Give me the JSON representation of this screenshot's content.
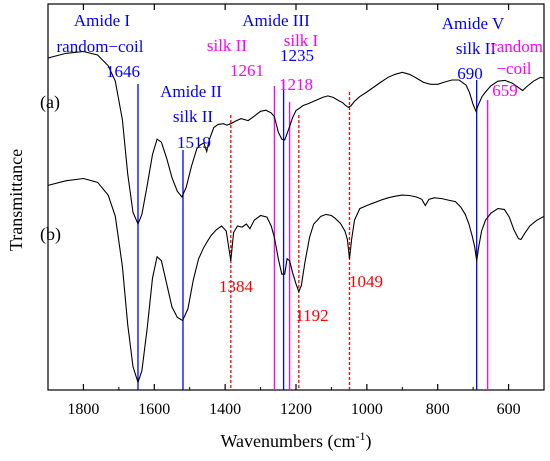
{
  "chart_data": {
    "type": "line",
    "title": "",
    "xlabel": "Wavenumbers (cm",
    "xlabel_sup": "-1",
    "xlabel_close": ")",
    "ylabel": "Transmittance",
    "xlim": [
      1900,
      500
    ],
    "x_reversed": true,
    "x_ticks": [
      1800,
      1600,
      1400,
      1200,
      1000,
      800,
      600
    ],
    "y_ticks_shown": false,
    "grid": false,
    "colors": {
      "trace": "#000000",
      "amide_blue": "#0000ff",
      "silk_magenta": "#ff00ff",
      "marker_red": "#ff0000"
    },
    "series": [
      {
        "label": "(a)",
        "points": [
          [
            1900,
            0.86
          ],
          [
            1850,
            0.872
          ],
          [
            1800,
            0.877
          ],
          [
            1760,
            0.868
          ],
          [
            1730,
            0.84
          ],
          [
            1710,
            0.8
          ],
          [
            1690,
            0.7
          ],
          [
            1675,
            0.56
          ],
          [
            1660,
            0.46
          ],
          [
            1646,
            0.43
          ],
          [
            1635,
            0.455
          ],
          [
            1620,
            0.53
          ],
          [
            1605,
            0.61
          ],
          [
            1592,
            0.65
          ],
          [
            1580,
            0.642
          ],
          [
            1565,
            0.6
          ],
          [
            1550,
            0.55
          ],
          [
            1535,
            0.515
          ],
          [
            1522,
            0.5
          ],
          [
            1510,
            0.525
          ],
          [
            1495,
            0.58
          ],
          [
            1480,
            0.625
          ],
          [
            1470,
            0.635
          ],
          [
            1460,
            0.64
          ],
          [
            1452,
            0.618
          ],
          [
            1445,
            0.648
          ],
          [
            1432,
            0.68
          ],
          [
            1420,
            0.688
          ],
          [
            1405,
            0.69
          ],
          [
            1395,
            0.686
          ],
          [
            1384,
            0.69
          ],
          [
            1370,
            0.697
          ],
          [
            1355,
            0.703
          ],
          [
            1335,
            0.698
          ],
          [
            1320,
            0.708
          ],
          [
            1300,
            0.722
          ],
          [
            1285,
            0.725
          ],
          [
            1270,
            0.718
          ],
          [
            1261,
            0.708
          ],
          [
            1250,
            0.668
          ],
          [
            1240,
            0.65
          ],
          [
            1232,
            0.648
          ],
          [
            1222,
            0.672
          ],
          [
            1210,
            0.705
          ],
          [
            1200,
            0.724
          ],
          [
            1190,
            0.73
          ],
          [
            1180,
            0.737
          ],
          [
            1165,
            0.742
          ],
          [
            1150,
            0.748
          ],
          [
            1140,
            0.752
          ],
          [
            1125,
            0.758
          ],
          [
            1110,
            0.762
          ],
          [
            1095,
            0.758
          ],
          [
            1080,
            0.75
          ],
          [
            1068,
            0.744
          ],
          [
            1060,
            0.737
          ],
          [
            1052,
            0.732
          ],
          [
            1045,
            0.736
          ],
          [
            1035,
            0.748
          ],
          [
            1020,
            0.76
          ],
          [
            1000,
            0.772
          ],
          [
            980,
            0.785
          ],
          [
            960,
            0.798
          ],
          [
            940,
            0.81
          ],
          [
            920,
            0.818
          ],
          [
            900,
            0.823
          ],
          [
            880,
            0.818
          ],
          [
            860,
            0.808
          ],
          [
            840,
            0.797
          ],
          [
            820,
            0.792
          ],
          [
            800,
            0.792
          ],
          [
            780,
            0.798
          ],
          [
            760,
            0.803
          ],
          [
            740,
            0.803
          ],
          [
            720,
            0.79
          ],
          [
            710,
            0.77
          ],
          [
            700,
            0.74
          ],
          [
            692,
            0.722
          ],
          [
            685,
            0.74
          ],
          [
            675,
            0.76
          ],
          [
            665,
            0.772
          ],
          [
            650,
            0.788
          ],
          [
            630,
            0.8
          ],
          [
            610,
            0.802
          ],
          [
            590,
            0.795
          ],
          [
            570,
            0.782
          ],
          [
            560,
            0.776
          ],
          [
            550,
            0.785
          ],
          [
            530,
            0.8
          ],
          [
            510,
            0.81
          ],
          [
            500,
            0.808
          ]
        ]
      },
      {
        "label": "(b)",
        "points": [
          [
            1900,
            0.53
          ],
          [
            1850,
            0.542
          ],
          [
            1800,
            0.548
          ],
          [
            1760,
            0.538
          ],
          [
            1730,
            0.505
          ],
          [
            1710,
            0.45
          ],
          [
            1690,
            0.32
          ],
          [
            1675,
            0.17
          ],
          [
            1660,
            0.06
          ],
          [
            1646,
            0.02
          ],
          [
            1635,
            0.05
          ],
          [
            1620,
            0.16
          ],
          [
            1605,
            0.29
          ],
          [
            1592,
            0.345
          ],
          [
            1580,
            0.335
          ],
          [
            1565,
            0.275
          ],
          [
            1550,
            0.215
          ],
          [
            1535,
            0.188
          ],
          [
            1520,
            0.18
          ],
          [
            1505,
            0.21
          ],
          [
            1490,
            0.285
          ],
          [
            1475,
            0.34
          ],
          [
            1460,
            0.37
          ],
          [
            1450,
            0.385
          ],
          [
            1440,
            0.4
          ],
          [
            1425,
            0.415
          ],
          [
            1410,
            0.425
          ],
          [
            1397,
            0.412
          ],
          [
            1384,
            0.335
          ],
          [
            1376,
            0.408
          ],
          [
            1365,
            0.425
          ],
          [
            1352,
            0.422
          ],
          [
            1340,
            0.43
          ],
          [
            1330,
            0.418
          ],
          [
            1318,
            0.44
          ],
          [
            1300,
            0.452
          ],
          [
            1282,
            0.448
          ],
          [
            1270,
            0.425
          ],
          [
            1261,
            0.395
          ],
          [
            1250,
            0.34
          ],
          [
            1240,
            0.3
          ],
          [
            1232,
            0.3
          ],
          [
            1225,
            0.34
          ],
          [
            1218,
            0.335
          ],
          [
            1210,
            0.305
          ],
          [
            1200,
            0.275
          ],
          [
            1192,
            0.255
          ],
          [
            1185,
            0.27
          ],
          [
            1175,
            0.33
          ],
          [
            1162,
            0.395
          ],
          [
            1150,
            0.43
          ],
          [
            1140,
            0.44
          ],
          [
            1130,
            0.45
          ],
          [
            1115,
            0.455
          ],
          [
            1100,
            0.452
          ],
          [
            1090,
            0.445
          ],
          [
            1075,
            0.432
          ],
          [
            1062,
            0.412
          ],
          [
            1055,
            0.39
          ],
          [
            1049,
            0.34
          ],
          [
            1043,
            0.39
          ],
          [
            1035,
            0.44
          ],
          [
            1020,
            0.47
          ],
          [
            1000,
            0.478
          ],
          [
            980,
            0.485
          ],
          [
            960,
            0.492
          ],
          [
            940,
            0.498
          ],
          [
            920,
            0.502
          ],
          [
            900,
            0.505
          ],
          [
            880,
            0.504
          ],
          [
            860,
            0.5
          ],
          [
            845,
            0.494
          ],
          [
            835,
            0.478
          ],
          [
            825,
            0.494
          ],
          [
            810,
            0.498
          ],
          [
            790,
            0.496
          ],
          [
            770,
            0.492
          ],
          [
            750,
            0.488
          ],
          [
            735,
            0.474
          ],
          [
            722,
            0.455
          ],
          [
            712,
            0.43
          ],
          [
            703,
            0.4
          ],
          [
            696,
            0.372
          ],
          [
            690,
            0.335
          ],
          [
            684,
            0.372
          ],
          [
            676,
            0.412
          ],
          [
            665,
            0.44
          ],
          [
            650,
            0.458
          ],
          [
            630,
            0.47
          ],
          [
            612,
            0.468
          ],
          [
            598,
            0.448
          ],
          [
            585,
            0.415
          ],
          [
            572,
            0.392
          ],
          [
            565,
            0.39
          ],
          [
            555,
            0.405
          ],
          [
            540,
            0.425
          ],
          [
            520,
            0.44
          ],
          [
            500,
            0.45
          ]
        ]
      }
    ],
    "vertical_markers": [
      {
        "x": 1646,
        "color": "#0000ff",
        "style": "solid"
      },
      {
        "x": 1519,
        "color": "#0000ff",
        "style": "solid"
      },
      {
        "x": 1261,
        "color": "#ff00ff",
        "style": "solid"
      },
      {
        "x": 1235,
        "color": "#0000ff",
        "style": "solid"
      },
      {
        "x": 1218,
        "color": "#ff00ff",
        "style": "solid"
      },
      {
        "x": 690,
        "color": "#0000ff",
        "style": "solid"
      },
      {
        "x": 659,
        "color": "#ff00ff",
        "style": "solid"
      },
      {
        "x": 1384,
        "color": "#ff0000",
        "style": "dashed"
      },
      {
        "x": 1192,
        "color": "#ff0000",
        "style": "dashed"
      },
      {
        "x": 1049,
        "color": "#ff0000",
        "style": "dashed"
      }
    ],
    "annotations": [
      {
        "text": "Amide I",
        "color": "#0000ff"
      },
      {
        "text": "random−coil",
        "color": "#0000ff"
      },
      {
        "text": "1646",
        "color": "#0000ff"
      },
      {
        "text": "Amide II",
        "color": "#0000ff"
      },
      {
        "text": "silk II",
        "color": "#0000ff"
      },
      {
        "text": "1519",
        "color": "#0000ff"
      },
      {
        "text": "Amide III",
        "color": "#0000ff"
      },
      {
        "text": "silk II",
        "color": "#ff00ff"
      },
      {
        "text": "1261",
        "color": "#ff00ff"
      },
      {
        "text": "silk I",
        "color": "#ff00ff"
      },
      {
        "text": "1235",
        "color": "#0000ff"
      },
      {
        "text": "1218",
        "color": "#ff00ff"
      },
      {
        "text": "Amide V",
        "color": "#0000ff"
      },
      {
        "text": "silk II",
        "color": "#0000ff"
      },
      {
        "text": "690",
        "color": "#0000ff"
      },
      {
        "text": "random",
        "color": "#ff00ff"
      },
      {
        "text": "−coil",
        "color": "#ff00ff"
      },
      {
        "text": "659",
        "color": "#ff00ff"
      },
      {
        "text": "1384",
        "color": "#ff0000"
      },
      {
        "text": "1192",
        "color": "#ff0000"
      },
      {
        "text": "1049",
        "color": "#ff0000"
      }
    ]
  }
}
